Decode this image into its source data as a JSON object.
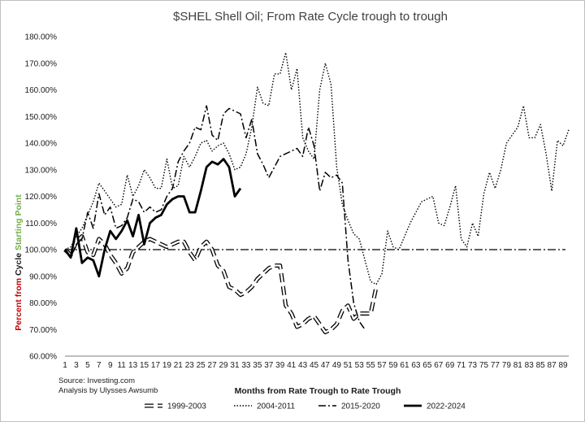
{
  "chart_data": {
    "type": "line",
    "title": "$SHEL Shell Oil; From Rate Cycle trough to trough",
    "xlabel": "Months from Rate Trough to Rate Trough",
    "ylabel_parts": [
      {
        "text": "Percent from ",
        "color": "#c00000"
      },
      {
        "text": "Cycle ",
        "color": "#1a1a1a"
      },
      {
        "text": "Starting Point",
        "color": "#70ad47"
      }
    ],
    "xlim": [
      1,
      90
    ],
    "ylim": [
      60,
      180
    ],
    "x_ticks": [
      1,
      3,
      5,
      7,
      9,
      11,
      13,
      15,
      17,
      19,
      21,
      23,
      25,
      27,
      29,
      31,
      33,
      35,
      37,
      39,
      41,
      43,
      45,
      47,
      49,
      51,
      53,
      55,
      57,
      59,
      61,
      63,
      65,
      67,
      69,
      71,
      73,
      75,
      77,
      79,
      81,
      83,
      85,
      87,
      89
    ],
    "y_ticks": [
      60,
      70,
      80,
      90,
      100,
      110,
      120,
      130,
      140,
      150,
      160,
      170,
      180
    ],
    "y_tick_labels": [
      "60.00%",
      "70.00%",
      "80.00%",
      "90.00%",
      "100.00%",
      "110.00%",
      "120.00%",
      "130.00%",
      "140.00%",
      "150.00%",
      "160.00%",
      "170.00%",
      "180.00%"
    ],
    "reference_line": 100,
    "legend_position": "bottom",
    "notes": [
      "Source: Investing.com",
      "Analysis by Ulysses Awsumb"
    ],
    "series": [
      {
        "name": "1999-2003",
        "style": "outlined-dash",
        "x": [
          1,
          2,
          3,
          4,
          5,
          6,
          7,
          8,
          9,
          10,
          11,
          12,
          13,
          14,
          15,
          16,
          17,
          18,
          19,
          20,
          21,
          22,
          23,
          24,
          25,
          26,
          27,
          28,
          29,
          30,
          31,
          32,
          33,
          34,
          35,
          36,
          37,
          38,
          39,
          40,
          41,
          42,
          43,
          44,
          45,
          46,
          47,
          48,
          49,
          50,
          51,
          52,
          53,
          54,
          55,
          56
        ],
        "values": [
          100,
          98,
          103,
          105,
          99,
          98,
          104,
          102,
          98,
          95,
          91,
          93,
          99,
          101,
          103,
          104,
          103,
          102,
          101,
          102,
          103,
          103,
          99,
          96,
          101,
          103,
          100,
          94,
          92,
          86,
          85,
          83,
          84,
          86,
          89,
          91,
          93,
          94,
          94,
          79,
          76,
          71,
          72,
          74,
          75,
          72,
          69,
          70,
          72,
          77,
          79,
          74,
          76,
          76,
          76,
          86
        ]
      },
      {
        "name": "2004-2011",
        "style": "dotted",
        "x": [
          1,
          2,
          3,
          4,
          5,
          6,
          7,
          8,
          9,
          10,
          11,
          12,
          13,
          14,
          15,
          16,
          17,
          18,
          19,
          20,
          21,
          22,
          23,
          24,
          25,
          26,
          27,
          28,
          29,
          30,
          31,
          32,
          33,
          34,
          35,
          36,
          37,
          38,
          39,
          40,
          41,
          42,
          43,
          44,
          45,
          46,
          47,
          48,
          49,
          50,
          51,
          52,
          53,
          54,
          55,
          56,
          57,
          58,
          59,
          60,
          61,
          62,
          63,
          64,
          65,
          66,
          67,
          68,
          69,
          70,
          71,
          72,
          73,
          74,
          75,
          76,
          77,
          78,
          79,
          80,
          81,
          82,
          83,
          84,
          85,
          86,
          87,
          88,
          89,
          90
        ],
        "values": [
          100,
          101,
          105,
          108,
          113,
          118,
          125,
          122,
          119,
          116,
          117,
          128,
          120,
          124,
          130,
          127,
          123,
          123,
          134,
          123,
          124,
          135,
          131,
          135,
          140,
          141,
          137,
          139,
          140,
          136,
          130,
          131,
          136,
          146,
          161,
          155,
          154,
          166,
          166,
          174,
          160,
          168,
          142,
          137,
          134,
          160,
          170,
          162,
          131,
          117,
          111,
          106,
          104,
          96,
          88,
          87,
          91,
          107,
          101,
          100,
          105,
          110,
          114,
          118,
          119,
          120,
          110,
          109,
          116,
          124,
          104,
          101,
          110,
          105,
          121,
          129,
          123,
          130,
          140,
          143,
          146,
          154,
          142,
          142,
          147,
          136,
          122,
          141,
          139,
          145
        ]
      },
      {
        "name": "2015-2020",
        "style": "dash-dot",
        "x": [
          1,
          2,
          3,
          4,
          5,
          6,
          7,
          8,
          9,
          10,
          11,
          12,
          13,
          14,
          15,
          16,
          17,
          18,
          19,
          20,
          21,
          22,
          23,
          24,
          25,
          26,
          27,
          28,
          29,
          30,
          31,
          32,
          33,
          34,
          35,
          36,
          37,
          38,
          39,
          40,
          41,
          42,
          43,
          44,
          45,
          46,
          47,
          48,
          49,
          50,
          51,
          52,
          53,
          54
        ],
        "values": [
          100,
          97,
          102,
          104,
          114,
          108,
          121,
          113,
          116,
          108,
          109,
          112,
          119,
          118,
          114,
          116,
          114,
          115,
          120,
          123,
          133,
          137,
          140,
          146,
          145,
          154,
          143,
          141,
          151,
          153,
          152,
          151,
          142,
          149,
          136,
          132,
          127,
          131,
          135,
          136,
          137,
          138,
          135,
          146,
          139,
          122,
          129,
          127,
          128,
          125,
          96,
          80,
          73,
          70
        ]
      },
      {
        "name": "2022-2024",
        "style": "solid-bold",
        "x": [
          1,
          2,
          3,
          4,
          5,
          6,
          7,
          8,
          9,
          10,
          11,
          12,
          13,
          14,
          15,
          16,
          17,
          18,
          19,
          20,
          21,
          22,
          23,
          24,
          25,
          26,
          27,
          28,
          29,
          30,
          31,
          32
        ],
        "values": [
          100,
          97,
          108,
          95,
          97,
          96,
          90,
          100,
          107,
          104,
          107,
          111,
          105,
          113,
          102,
          110,
          112,
          113,
          117,
          119,
          120,
          120,
          114,
          114,
          122,
          131,
          133,
          132,
          134,
          131,
          120,
          123
        ]
      }
    ]
  }
}
